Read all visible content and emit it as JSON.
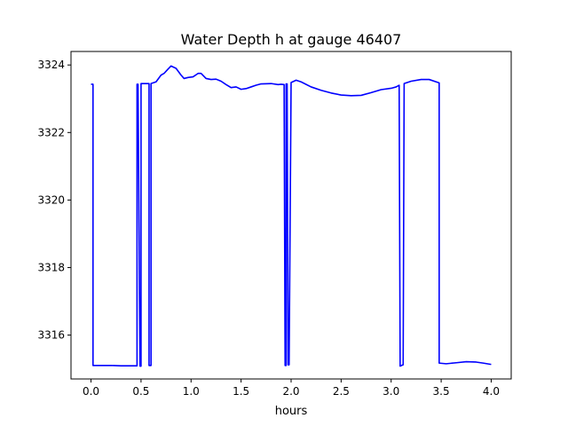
{
  "chart_data": {
    "type": "line",
    "title": "Water Depth h at gauge 46407",
    "xlabel": "hours",
    "ylabel": "",
    "xlim": [
      -0.2,
      4.2
    ],
    "ylim": [
      3314.7,
      3324.4
    ],
    "xticks": [
      0.0,
      0.5,
      1.0,
      1.5,
      2.0,
      2.5,
      3.0,
      3.5,
      4.0
    ],
    "xtick_labels": [
      "0.0",
      "0.5",
      "1.0",
      "1.5",
      "2.0",
      "2.5",
      "3.0",
      "3.5",
      "4.0"
    ],
    "yticks": [
      3316,
      3318,
      3320,
      3322,
      3324
    ],
    "ytick_labels": [
      "3316",
      "3318",
      "3320",
      "3322",
      "3324"
    ],
    "grid": false,
    "series": [
      {
        "color": "#0000ff",
        "points": [
          [
            0.0,
            3323.43
          ],
          [
            0.02,
            3323.43
          ],
          [
            0.02,
            3315.1
          ],
          [
            0.1,
            3315.1
          ],
          [
            0.2,
            3315.1
          ],
          [
            0.3,
            3315.09
          ],
          [
            0.46,
            3315.09
          ],
          [
            0.46,
            3323.43
          ],
          [
            0.47,
            3323.43
          ],
          [
            0.49,
            3315.08
          ],
          [
            0.5,
            3315.08
          ],
          [
            0.5,
            3323.45
          ],
          [
            0.58,
            3323.45
          ],
          [
            0.58,
            3315.1
          ],
          [
            0.6,
            3315.1
          ],
          [
            0.6,
            3323.45
          ],
          [
            0.65,
            3323.5
          ],
          [
            0.7,
            3323.7
          ],
          [
            0.73,
            3323.75
          ],
          [
            0.77,
            3323.88
          ],
          [
            0.8,
            3323.97
          ],
          [
            0.85,
            3323.9
          ],
          [
            0.9,
            3323.7
          ],
          [
            0.93,
            3323.6
          ],
          [
            0.97,
            3323.63
          ],
          [
            1.02,
            3323.65
          ],
          [
            1.07,
            3323.75
          ],
          [
            1.1,
            3323.75
          ],
          [
            1.15,
            3323.6
          ],
          [
            1.2,
            3323.57
          ],
          [
            1.25,
            3323.58
          ],
          [
            1.3,
            3323.52
          ],
          [
            1.35,
            3323.42
          ],
          [
            1.4,
            3323.33
          ],
          [
            1.45,
            3323.35
          ],
          [
            1.5,
            3323.28
          ],
          [
            1.55,
            3323.3
          ],
          [
            1.6,
            3323.35
          ],
          [
            1.65,
            3323.4
          ],
          [
            1.7,
            3323.44
          ],
          [
            1.8,
            3323.45
          ],
          [
            1.87,
            3323.42
          ],
          [
            1.9,
            3323.43
          ],
          [
            1.93,
            3323.42
          ],
          [
            1.94,
            3315.1
          ],
          [
            1.95,
            3315.1
          ],
          [
            1.95,
            3323.44
          ],
          [
            1.96,
            3323.44
          ],
          [
            1.97,
            3315.12
          ],
          [
            1.98,
            3315.12
          ],
          [
            2.0,
            3323.48
          ],
          [
            2.05,
            3323.55
          ],
          [
            2.1,
            3323.5
          ],
          [
            2.2,
            3323.35
          ],
          [
            2.3,
            3323.25
          ],
          [
            2.4,
            3323.17
          ],
          [
            2.5,
            3323.11
          ],
          [
            2.6,
            3323.09
          ],
          [
            2.7,
            3323.1
          ],
          [
            2.8,
            3323.18
          ],
          [
            2.9,
            3323.27
          ],
          [
            3.0,
            3323.31
          ],
          [
            3.05,
            3323.35
          ],
          [
            3.08,
            3323.4
          ],
          [
            3.09,
            3315.08
          ],
          [
            3.12,
            3315.12
          ],
          [
            3.13,
            3323.45
          ],
          [
            3.2,
            3323.52
          ],
          [
            3.3,
            3323.57
          ],
          [
            3.38,
            3323.57
          ],
          [
            3.47,
            3323.48
          ],
          [
            3.48,
            3323.47
          ],
          [
            3.48,
            3315.17
          ],
          [
            3.55,
            3315.15
          ],
          [
            3.65,
            3315.18
          ],
          [
            3.75,
            3315.21
          ],
          [
            3.85,
            3315.2
          ],
          [
            3.92,
            3315.17
          ],
          [
            4.0,
            3315.13
          ]
        ]
      }
    ]
  }
}
